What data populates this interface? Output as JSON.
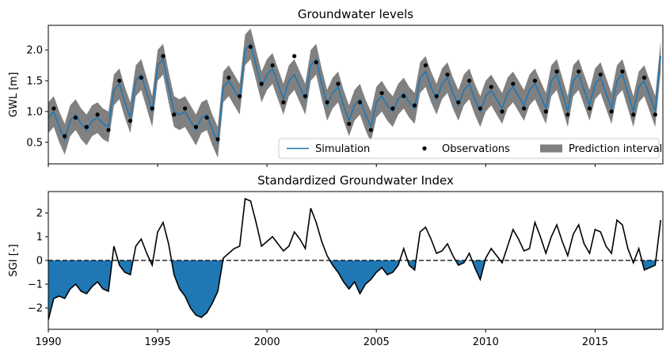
{
  "chart_data": [
    {
      "type": "line",
      "title": "Groundwater levels",
      "ylabel": "GWL [m]",
      "xlim": [
        1990,
        2018.1
      ],
      "xticks": [
        1990,
        1995,
        2000,
        2005,
        2010,
        2015
      ],
      "show_xtick_labels": false,
      "ylim": [
        0.15,
        2.4
      ],
      "yticks": [
        0.5,
        {
          "value": 1.0,
          "label": "1.0"
        },
        1.5,
        {
          "value": 2.0,
          "label": "2.0"
        }
      ],
      "legend": "lower right",
      "x": [
        1990,
        1990.25,
        1990.5,
        1990.75,
        1991,
        1991.25,
        1991.5,
        1991.75,
        1992,
        1992.25,
        1992.5,
        1992.75,
        1993,
        1993.25,
        1993.5,
        1993.75,
        1994,
        1994.25,
        1994.5,
        1994.75,
        1995,
        1995.25,
        1995.5,
        1995.75,
        1996,
        1996.25,
        1996.5,
        1996.75,
        1997,
        1997.25,
        1997.5,
        1997.75,
        1998,
        1998.25,
        1998.5,
        1998.75,
        1999,
        1999.25,
        1999.5,
        1999.75,
        2000,
        2000.25,
        2000.5,
        2000.75,
        2001,
        2001.25,
        2001.5,
        2001.75,
        2002,
        2002.25,
        2002.5,
        2002.75,
        2003,
        2003.25,
        2003.5,
        2003.75,
        2004,
        2004.25,
        2004.5,
        2004.75,
        2005,
        2005.25,
        2005.5,
        2005.75,
        2006,
        2006.25,
        2006.5,
        2006.75,
        2007,
        2007.25,
        2007.5,
        2007.75,
        2008,
        2008.25,
        2008.5,
        2008.75,
        2009,
        2009.25,
        2009.5,
        2009.75,
        2010,
        2010.25,
        2010.5,
        2010.75,
        2011,
        2011.25,
        2011.5,
        2011.75,
        2012,
        2012.25,
        2012.5,
        2012.75,
        2013,
        2013.25,
        2013.5,
        2013.75,
        2014,
        2014.25,
        2014.5,
        2014.75,
        2015,
        2015.25,
        2015.5,
        2015.75,
        2016,
        2016.25,
        2016.5,
        2016.75,
        2017,
        2017.25,
        2017.5,
        2017.75,
        2018
      ],
      "series": [
        {
          "name": "Simulation",
          "kind": "line",
          "color": "#1f77b4",
          "values": [
            0.9,
            1.0,
            0.75,
            0.55,
            0.85,
            0.95,
            0.8,
            0.7,
            0.85,
            0.9,
            0.8,
            0.75,
            1.35,
            1.45,
            1.15,
            0.9,
            1.5,
            1.6,
            1.3,
            1.0,
            1.75,
            1.85,
            1.4,
            1.0,
            0.95,
            1.0,
            0.85,
            0.7,
            0.9,
            0.95,
            0.7,
            0.5,
            1.4,
            1.5,
            1.35,
            1.2,
            2.0,
            2.1,
            1.75,
            1.4,
            1.6,
            1.7,
            1.45,
            1.2,
            1.5,
            1.6,
            1.4,
            1.2,
            1.75,
            1.85,
            1.45,
            1.1,
            1.3,
            1.4,
            1.1,
            0.85,
            1.1,
            1.2,
            0.95,
            0.75,
            1.15,
            1.25,
            1.1,
            1.0,
            1.2,
            1.3,
            1.15,
            1.05,
            1.55,
            1.65,
            1.4,
            1.2,
            1.45,
            1.55,
            1.3,
            1.1,
            1.35,
            1.45,
            1.2,
            1.0,
            1.25,
            1.35,
            1.2,
            1.05,
            1.3,
            1.4,
            1.25,
            1.1,
            1.35,
            1.45,
            1.25,
            1.05,
            1.5,
            1.6,
            1.3,
            1.0,
            1.5,
            1.6,
            1.35,
            1.1,
            1.45,
            1.55,
            1.3,
            1.05,
            1.5,
            1.6,
            1.3,
            1.0,
            1.4,
            1.5,
            1.25,
            1.0,
            1.9
          ]
        },
        {
          "name": "Observations",
          "kind": "scatter",
          "color": "#000000",
          "x": [
            1990.25,
            1990.75,
            1991.25,
            1991.75,
            1992.25,
            1992.75,
            1993.25,
            1993.75,
            1994.25,
            1994.75,
            1995.25,
            1995.75,
            1996.25,
            1996.75,
            1997.25,
            1997.75,
            1998.25,
            1998.75,
            1999.25,
            1999.75,
            2000.25,
            2000.75,
            2001.25,
            2001.75,
            2002.25,
            2002.75,
            2003.25,
            2003.75,
            2004.25,
            2004.75,
            2005.25,
            2005.75,
            2006.25,
            2006.75,
            2007.25,
            2007.75,
            2008.25,
            2008.75,
            2009.25,
            2009.75,
            2010.25,
            2010.75,
            2011.25,
            2011.75,
            2012.25,
            2012.75,
            2013.25,
            2013.75,
            2014.25,
            2014.75,
            2015.25,
            2015.75,
            2016.25,
            2016.75,
            2017.25,
            2017.75
          ],
          "values": [
            1.05,
            0.6,
            0.9,
            0.75,
            0.95,
            0.7,
            1.5,
            0.85,
            1.55,
            1.05,
            1.9,
            0.95,
            1.05,
            0.75,
            0.9,
            0.55,
            1.55,
            1.25,
            2.05,
            1.45,
            1.75,
            1.15,
            1.9,
            1.25,
            1.8,
            1.15,
            1.45,
            0.8,
            1.15,
            0.7,
            1.3,
            1.05,
            1.25,
            1.1,
            1.75,
            1.25,
            1.6,
            1.15,
            1.5,
            1.05,
            1.4,
            1.0,
            1.45,
            1.05,
            1.5,
            1.0,
            1.65,
            0.95,
            1.65,
            1.05,
            1.6,
            1.0,
            1.65,
            0.95,
            1.55,
            0.95
          ]
        },
        {
          "name": "Prediction interval",
          "kind": "band",
          "color": "#808080",
          "lower": [
            0.65,
            0.75,
            0.5,
            0.3,
            0.6,
            0.7,
            0.55,
            0.45,
            0.6,
            0.65,
            0.55,
            0.5,
            1.1,
            1.2,
            0.9,
            0.65,
            1.25,
            1.35,
            1.05,
            0.75,
            1.5,
            1.6,
            1.15,
            0.75,
            0.7,
            0.75,
            0.6,
            0.45,
            0.65,
            0.7,
            0.45,
            0.25,
            1.15,
            1.25,
            1.1,
            0.95,
            1.75,
            1.85,
            1.5,
            1.15,
            1.35,
            1.45,
            1.2,
            0.95,
            1.25,
            1.35,
            1.15,
            0.95,
            1.5,
            1.6,
            1.2,
            0.85,
            1.05,
            1.15,
            0.85,
            0.6,
            0.85,
            0.95,
            0.7,
            0.5,
            0.9,
            1.0,
            0.85,
            0.75,
            0.95,
            1.05,
            0.9,
            0.8,
            1.3,
            1.4,
            1.15,
            0.95,
            1.2,
            1.3,
            1.05,
            0.85,
            1.1,
            1.2,
            0.95,
            0.75,
            1.0,
            1.1,
            0.95,
            0.8,
            1.05,
            1.15,
            1.0,
            0.85,
            1.1,
            1.2,
            1.0,
            0.8,
            1.25,
            1.35,
            1.05,
            0.75,
            1.25,
            1.35,
            1.1,
            0.85,
            1.2,
            1.3,
            1.05,
            0.8,
            1.25,
            1.35,
            1.05,
            0.75,
            1.15,
            1.25,
            1.0,
            0.75,
            1.65
          ],
          "upper": [
            1.15,
            1.25,
            1.0,
            0.8,
            1.1,
            1.2,
            1.05,
            0.95,
            1.1,
            1.15,
            1.05,
            1.0,
            1.6,
            1.7,
            1.4,
            1.15,
            1.75,
            1.85,
            1.55,
            1.25,
            2.0,
            2.1,
            1.65,
            1.25,
            1.2,
            1.25,
            1.1,
            0.95,
            1.15,
            1.2,
            0.95,
            0.75,
            1.65,
            1.75,
            1.6,
            1.45,
            2.25,
            2.35,
            2.0,
            1.65,
            1.85,
            1.95,
            1.7,
            1.45,
            1.75,
            1.85,
            1.65,
            1.45,
            2.0,
            2.1,
            1.7,
            1.35,
            1.55,
            1.65,
            1.35,
            1.1,
            1.35,
            1.45,
            1.2,
            1.0,
            1.4,
            1.5,
            1.35,
            1.25,
            1.45,
            1.55,
            1.4,
            1.3,
            1.8,
            1.9,
            1.65,
            1.45,
            1.7,
            1.8,
            1.55,
            1.35,
            1.6,
            1.7,
            1.45,
            1.25,
            1.5,
            1.6,
            1.45,
            1.3,
            1.55,
            1.65,
            1.5,
            1.35,
            1.6,
            1.7,
            1.5,
            1.3,
            1.75,
            1.85,
            1.55,
            1.25,
            1.75,
            1.85,
            1.6,
            1.35,
            1.7,
            1.8,
            1.55,
            1.3,
            1.75,
            1.85,
            1.55,
            1.25,
            1.65,
            1.75,
            1.5,
            1.25,
            2.15
          ]
        }
      ]
    },
    {
      "type": "line",
      "title": "Standardized Groundwater Index",
      "ylabel": "SGI [-]",
      "xlim": [
        1990,
        2018.1
      ],
      "xticks": [
        1990,
        1995,
        2000,
        2005,
        2010,
        2015
      ],
      "show_xtick_labels": true,
      "ylim": [
        -2.9,
        2.9
      ],
      "yticks": [
        {
          "value": -2,
          "label": "−2"
        },
        {
          "value": -1,
          "label": "−1"
        },
        0,
        1,
        2
      ],
      "reference_line": 0,
      "line_color": "#000000",
      "fill_below_color": "#1f77b4",
      "x": [
        1990,
        1990.25,
        1990.5,
        1990.75,
        1991,
        1991.25,
        1991.5,
        1991.75,
        1992,
        1992.25,
        1992.5,
        1992.75,
        1993,
        1993.25,
        1993.5,
        1993.75,
        1994,
        1994.25,
        1994.5,
        1994.75,
        1995,
        1995.25,
        1995.5,
        1995.75,
        1996,
        1996.25,
        1996.5,
        1996.75,
        1997,
        1997.25,
        1997.5,
        1997.75,
        1998,
        1998.25,
        1998.5,
        1998.75,
        1999,
        1999.25,
        1999.5,
        1999.75,
        2000,
        2000.25,
        2000.5,
        2000.75,
        2001,
        2001.25,
        2001.5,
        2001.75,
        2002,
        2002.25,
        2002.5,
        2002.75,
        2003,
        2003.25,
        2003.5,
        2003.75,
        2004,
        2004.25,
        2004.5,
        2004.75,
        2005,
        2005.25,
        2005.5,
        2005.75,
        2006,
        2006.25,
        2006.5,
        2006.75,
        2007,
        2007.25,
        2007.5,
        2007.75,
        2008,
        2008.25,
        2008.5,
        2008.75,
        2009,
        2009.25,
        2009.5,
        2009.75,
        2010,
        2010.25,
        2010.5,
        2010.75,
        2011,
        2011.25,
        2011.5,
        2011.75,
        2012,
        2012.25,
        2012.5,
        2012.75,
        2013,
        2013.25,
        2013.5,
        2013.75,
        2014,
        2014.25,
        2014.5,
        2014.75,
        2015,
        2015.25,
        2015.5,
        2015.75,
        2016,
        2016.25,
        2016.5,
        2016.75,
        2017,
        2017.25,
        2017.5,
        2017.75,
        2018
      ],
      "values": [
        -2.5,
        -1.6,
        -1.5,
        -1.6,
        -1.2,
        -1.0,
        -1.3,
        -1.4,
        -1.1,
        -0.9,
        -1.2,
        -1.3,
        0.6,
        -0.2,
        -0.5,
        -0.6,
        0.6,
        0.9,
        0.3,
        -0.2,
        1.2,
        1.6,
        0.7,
        -0.6,
        -1.2,
        -1.5,
        -2.0,
        -2.3,
        -2.4,
        -2.2,
        -1.8,
        -1.3,
        0.1,
        0.3,
        0.5,
        0.6,
        2.6,
        2.5,
        1.6,
        0.6,
        0.8,
        1.0,
        0.7,
        0.4,
        0.6,
        1.2,
        0.9,
        0.5,
        2.2,
        1.6,
        0.8,
        0.2,
        -0.2,
        -0.5,
        -0.9,
        -1.2,
        -0.9,
        -1.4,
        -1.0,
        -0.8,
        -0.5,
        -0.3,
        -0.6,
        -0.5,
        -0.2,
        0.5,
        -0.2,
        -0.4,
        1.2,
        1.4,
        0.9,
        0.3,
        0.4,
        0.7,
        0.2,
        -0.2,
        -0.1,
        0.3,
        -0.3,
        -0.8,
        0.1,
        0.5,
        0.2,
        -0.1,
        0.6,
        1.3,
        0.9,
        0.4,
        0.5,
        1.6,
        1.0,
        0.3,
        1.0,
        1.5,
        0.8,
        0.2,
        1.1,
        1.5,
        0.7,
        0.3,
        1.3,
        1.2,
        0.6,
        0.3,
        1.7,
        1.5,
        0.5,
        -0.1,
        0.5,
        -0.4,
        -0.3,
        -0.2,
        1.7
      ]
    }
  ]
}
